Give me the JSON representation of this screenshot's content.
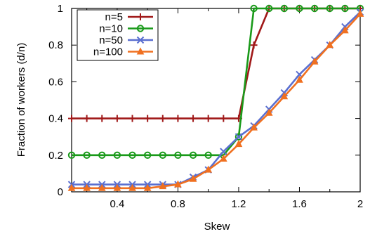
{
  "chart_data": {
    "type": "line",
    "xlabel": "Skew",
    "ylabel": "Fraction of workers (d/n)",
    "xlim": [
      0.1,
      2.0
    ],
    "ylim": [
      0,
      1
    ],
    "x_ticks": [
      "0.4",
      "0.8",
      "1.2",
      "1.6",
      "2"
    ],
    "x_tick_values": [
      0.4,
      0.8,
      1.2,
      1.6,
      2.0
    ],
    "y_ticks": [
      "0",
      "0.2",
      "0.4",
      "0.6",
      "0.8",
      "1"
    ],
    "y_tick_values": [
      0,
      0.2,
      0.4,
      0.6,
      0.8,
      1.0
    ],
    "legend_position": "top-left",
    "grid": false,
    "x": [
      0.1,
      0.2,
      0.3,
      0.4,
      0.5,
      0.6,
      0.7,
      0.8,
      0.9,
      1.0,
      1.1,
      1.2,
      1.3,
      1.4,
      1.5,
      1.6,
      1.7,
      1.8,
      1.9,
      2.0
    ],
    "series": [
      {
        "name": "n=5",
        "color": "#a01818",
        "marker": "plus",
        "values": [
          0.4,
          0.4,
          0.4,
          0.4,
          0.4,
          0.4,
          0.4,
          0.4,
          0.4,
          0.4,
          0.4,
          0.4,
          0.8,
          1.0,
          1.0,
          1.0,
          1.0,
          1.0,
          1.0,
          1.0
        ]
      },
      {
        "name": "n=10",
        "color": "#1a9a1a",
        "marker": "circle",
        "values": [
          0.2,
          0.2,
          0.2,
          0.2,
          0.2,
          0.2,
          0.2,
          0.2,
          0.2,
          0.2,
          0.2,
          0.3,
          1.0,
          1.0,
          1.0,
          1.0,
          1.0,
          1.0,
          1.0,
          1.0
        ]
      },
      {
        "name": "n=50",
        "color": "#5a6fd0",
        "marker": "x",
        "values": [
          0.04,
          0.04,
          0.04,
          0.04,
          0.04,
          0.04,
          0.04,
          0.04,
          0.08,
          0.12,
          0.22,
          0.3,
          0.36,
          0.45,
          0.54,
          0.64,
          0.72,
          0.8,
          0.9,
          0.98
        ]
      },
      {
        "name": "n=100",
        "color": "#f07020",
        "marker": "triangle",
        "values": [
          0.02,
          0.02,
          0.02,
          0.02,
          0.02,
          0.02,
          0.03,
          0.04,
          0.07,
          0.12,
          0.18,
          0.26,
          0.35,
          0.43,
          0.52,
          0.61,
          0.71,
          0.8,
          0.88,
          0.97
        ]
      }
    ]
  }
}
